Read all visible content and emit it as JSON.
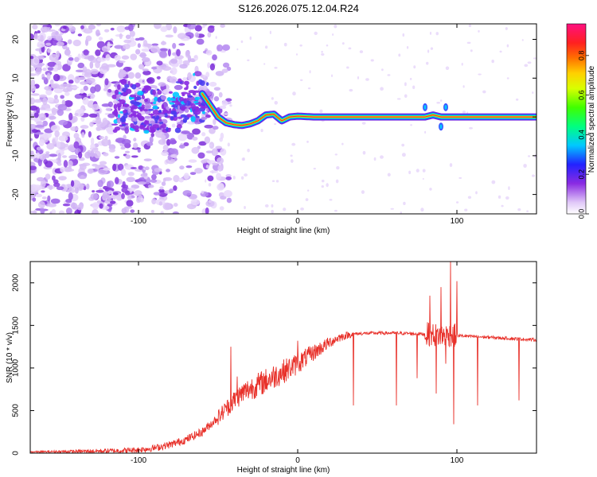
{
  "title": "S126.2026.075.12.04.R24",
  "chart_data": [
    {
      "type": "heatmap",
      "xlabel": "Height of straight line (km)",
      "ylabel": "Frequency (Hz)",
      "xlim": [
        -168,
        150
      ],
      "ylim": [
        -25,
        24
      ],
      "xticks": [
        -100,
        0,
        100
      ],
      "yticks": [
        -20,
        -10,
        0,
        10,
        20
      ],
      "colorbar": {
        "label": "Normalized spectral amplitude",
        "range": [
          0,
          0.96
        ],
        "ticks": [
          0.0,
          0.2,
          0.4,
          0.6,
          0.8
        ],
        "tick_labels": [
          "0.0",
          "0.2",
          "0.4",
          "0.6",
          "0.8"
        ],
        "colormap": "rainbow (white-lavender, purple, blue, cyan, green, yellow, orange, red, magenta)"
      },
      "ridge": {
        "description": "main spectral ridge frequency vs height",
        "x": [
          -60,
          -55,
          -50,
          -45,
          -40,
          -35,
          -30,
          -25,
          -20,
          -15,
          -10,
          -5,
          0,
          10,
          40,
          70,
          75,
          80,
          85,
          90,
          95,
          120,
          150
        ],
        "y": [
          6,
          3,
          0,
          -1.5,
          -2,
          -2.2,
          -1.8,
          -1,
          0.5,
          0.7,
          -1,
          0,
          0.2,
          0,
          0,
          0,
          0,
          0,
          0.5,
          0,
          0,
          0,
          0
        ]
      }
    },
    {
      "type": "line",
      "xlabel": "Height of straight line (km)",
      "ylabel": "SNR (10 * v/v)",
      "xlim": [
        -168,
        150
      ],
      "ylim": [
        0,
        2250
      ],
      "xticks": [
        -100,
        0,
        100
      ],
      "yticks": [
        0,
        500,
        1000,
        1500,
        2000
      ],
      "color": "#e8312a",
      "series": [
        {
          "x": [
            -168,
            -140,
            -110,
            -100,
            -90,
            -80,
            -70,
            -60,
            -50,
            -45,
            -40,
            -35,
            -30,
            -25,
            -20,
            -15,
            -10,
            -5,
            0,
            5,
            10,
            15,
            20,
            25,
            30,
            35,
            40,
            50,
            60,
            70,
            75,
            80,
            85,
            90,
            95,
            100,
            110,
            120,
            130,
            140,
            150
          ],
          "y": [
            15,
            20,
            30,
            40,
            60,
            100,
            160,
            250,
            420,
            520,
            620,
            700,
            760,
            800,
            850,
            900,
            950,
            1000,
            1050,
            1120,
            1180,
            1240,
            1300,
            1350,
            1380,
            1400,
            1405,
            1410,
            1410,
            1405,
            1400,
            1400,
            1390,
            1380,
            1390,
            1380,
            1370,
            1360,
            1350,
            1340,
            1330
          ]
        }
      ],
      "spikes": {
        "x": [
          -45,
          -42,
          -40,
          -38,
          0,
          35,
          62,
          75,
          83,
          87,
          90,
          93,
          96,
          98,
          100,
          113,
          139
        ],
        "y": [
          560,
          1250,
          580,
          900,
          1320,
          560,
          560,
          880,
          1850,
          700,
          1950,
          1050,
          2250,
          340,
          2020,
          560,
          620
        ]
      }
    }
  ]
}
